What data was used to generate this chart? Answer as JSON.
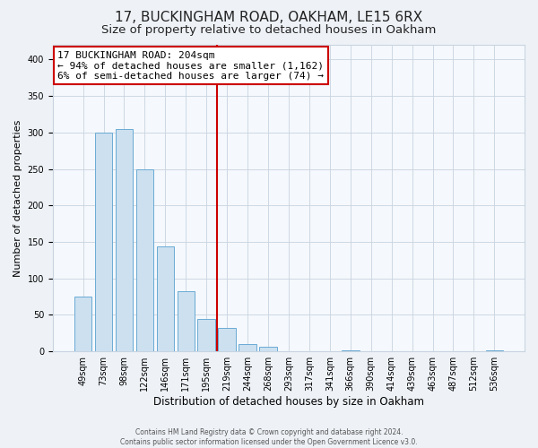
{
  "title": "17, BUCKINGHAM ROAD, OAKHAM, LE15 6RX",
  "subtitle": "Size of property relative to detached houses in Oakham",
  "xlabel": "Distribution of detached houses by size in Oakham",
  "ylabel": "Number of detached properties",
  "bar_labels": [
    "49sqm",
    "73sqm",
    "98sqm",
    "122sqm",
    "146sqm",
    "171sqm",
    "195sqm",
    "219sqm",
    "244sqm",
    "268sqm",
    "293sqm",
    "317sqm",
    "341sqm",
    "366sqm",
    "390sqm",
    "414sqm",
    "439sqm",
    "463sqm",
    "487sqm",
    "512sqm",
    "536sqm"
  ],
  "bar_heights": [
    75,
    300,
    305,
    249,
    144,
    83,
    45,
    32,
    10,
    6,
    0,
    0,
    0,
    2,
    0,
    0,
    0,
    0,
    0,
    0,
    2
  ],
  "bar_color": "#cce0f0",
  "bar_edgecolor": "#6aaad4",
  "vline_x_index": 6.5,
  "vline_color": "#cc0000",
  "annotation_line1": "17 BUCKINGHAM ROAD: 204sqm",
  "annotation_line2": "← 94% of detached houses are smaller (1,162)",
  "annotation_line3": "6% of semi-detached houses are larger (74) →",
  "annotation_box_color": "#ffffff",
  "annotation_box_edgecolor": "#cc0000",
  "ylim": [
    0,
    420
  ],
  "yticks": [
    0,
    50,
    100,
    150,
    200,
    250,
    300,
    350,
    400
  ],
  "footer1": "Contains HM Land Registry data © Crown copyright and database right 2024.",
  "footer2": "Contains public sector information licensed under the Open Government Licence v3.0.",
  "background_color": "#eef2f7",
  "plot_background_color": "#f5f8fc",
  "grid_color": "#c8d4e0",
  "title_fontsize": 11,
  "subtitle_fontsize": 9.5,
  "tick_fontsize": 7,
  "ylabel_fontsize": 8,
  "xlabel_fontsize": 8.5,
  "annotation_fontsize": 8,
  "footer_fontsize": 5.5
}
